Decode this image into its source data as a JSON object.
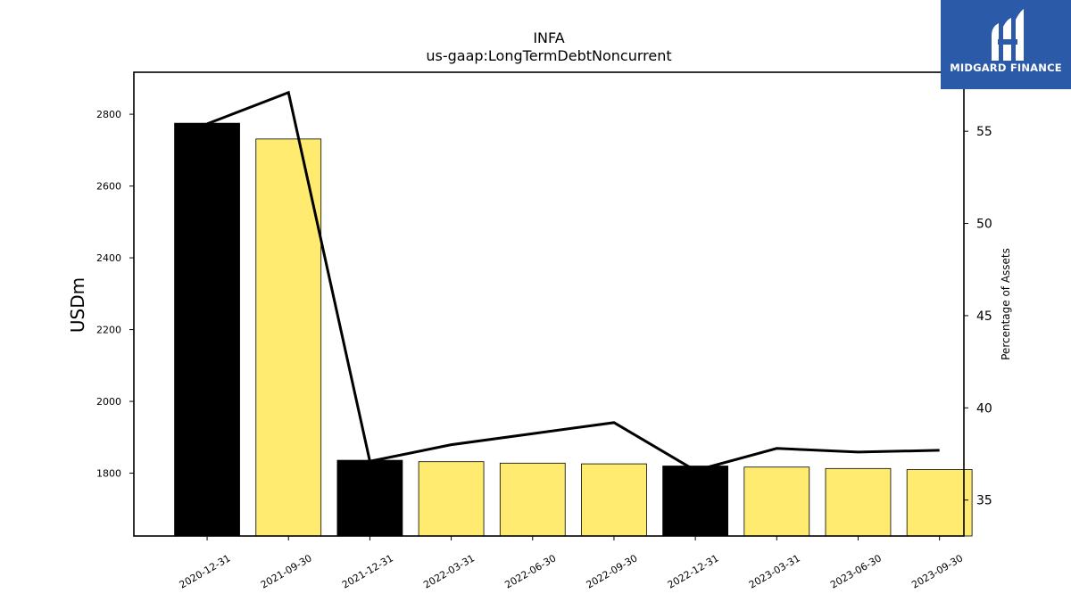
{
  "logo": {
    "text": "MIDGARD FINANCE",
    "icon": "midgard-logo-icon",
    "color": "#2b5aa8"
  },
  "chart_data": {
    "type": "bar",
    "title": "INFA",
    "subtitle": "us-gaap:LongTermDebtNoncurrent",
    "ylabel": "USDm",
    "y2label": "Percentage of Assets",
    "categories": [
      "2020-12-31",
      "2021-09-30",
      "2021-12-31",
      "2022-03-31",
      "2022-06-30",
      "2022-09-30",
      "2022-12-31",
      "2023-03-31",
      "2023-06-30",
      "2023-09-30"
    ],
    "series": [
      {
        "type": "bar",
        "axis": "left",
        "values": [
          2775,
          2731,
          1836,
          1832,
          1828,
          1826,
          1820,
          1817,
          1813,
          1810
        ],
        "colors": [
          "#000000",
          "#ffeb70",
          "#000000",
          "#ffeb70",
          "#ffeb70",
          "#ffeb70",
          "#000000",
          "#ffeb70",
          "#ffeb70",
          "#ffeb70"
        ]
      },
      {
        "type": "line",
        "axis": "right",
        "color": "#000000",
        "values": [
          55.4,
          57.1,
          37.1,
          38.0,
          38.6,
          39.2,
          36.6,
          37.8,
          37.6,
          37.7
        ]
      }
    ],
    "ylim": [
      1625,
      2917
    ],
    "y2lim": [
      33.05,
      58.2
    ],
    "yticks": [
      1800,
      2000,
      2200,
      2400,
      2600,
      2800
    ],
    "y2ticks": [
      35,
      40,
      45,
      50,
      55
    ]
  }
}
